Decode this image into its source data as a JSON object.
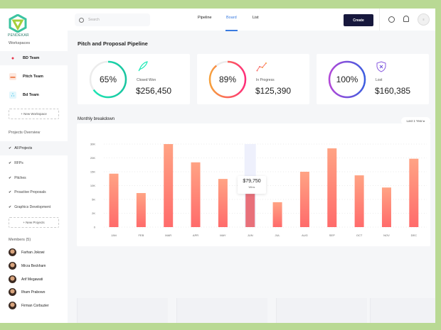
{
  "brand": {
    "logo_text": "PENDEKAR"
  },
  "sidebar": {
    "workspaces_label": "Workspaces",
    "workspaces": [
      {
        "label": "BD Team",
        "color": "#e8334a"
      },
      {
        "label": "Pitch Team",
        "color": "#f08a5d"
      },
      {
        "label": "Bd Team",
        "color": "#3ac0e8"
      }
    ],
    "new_workspace": "+ New Workspace",
    "projects_label": "Projects Overview",
    "projects": [
      {
        "label": "All Projects"
      },
      {
        "label": "RFPs"
      },
      {
        "label": "Pitches"
      },
      {
        "label": "Proactive Proposals"
      },
      {
        "label": "Graphics Development"
      }
    ],
    "new_project": "+ New Projects",
    "members_label": "Members (5)",
    "members": [
      {
        "name": "Farhan Jokowi"
      },
      {
        "name": "Mirza Beckham"
      },
      {
        "name": "Arif Megawati"
      },
      {
        "name": "Ilham Prabowo"
      },
      {
        "name": "Firman Corbuzier"
      }
    ]
  },
  "header": {
    "search_placeholder": "Search",
    "tabs": [
      {
        "label": "Pipeline"
      },
      {
        "label": "Board",
        "active": true
      },
      {
        "label": "List"
      }
    ],
    "create_label": "Create",
    "icons": [
      "gear-icon",
      "bell-icon",
      "avatar"
    ]
  },
  "main": {
    "title": "Pitch and Proposal Pipeline",
    "cards": [
      {
        "percent": "65%",
        "progress": 0.65,
        "caption": "Closed Won",
        "amount": "$256,450",
        "icon": "rocket-icon",
        "colors": [
          "#1de9b6",
          "#19c5a0"
        ]
      },
      {
        "percent": "89%",
        "progress": 0.89,
        "caption": "In Progress",
        "amount": "$125,390",
        "icon": "trend-line-icon",
        "colors": [
          "#f7a13b",
          "#ff2d7a"
        ]
      },
      {
        "percent": "100%",
        "progress": 1.0,
        "caption": "Lost",
        "amount": "$160,385",
        "icon": "shield-x-icon",
        "colors": [
          "#b247d8",
          "#3c5ee0"
        ]
      }
    ],
    "breakdown_title": "Monthly breakdown",
    "range_label": "Last 1 Year"
  },
  "chart_data": {
    "type": "bar",
    "categories": [
      "JAN",
      "FEB",
      "MAR",
      "APR",
      "MAY",
      "JUN",
      "JUL",
      "AUG",
      "SEP",
      "OCT",
      "NOV",
      "DEC"
    ],
    "values": [
      14300,
      7300,
      30000,
      18400,
      12400,
      7000,
      4400,
      15000,
      26900,
      13700,
      9300,
      19700
    ],
    "y_ticks": [
      "0",
      "2K",
      "5K",
      "10K",
      "15K",
      "20K",
      "30K"
    ],
    "y_tick_values": [
      0,
      2000,
      5000,
      10000,
      15000,
      20000,
      30000
    ],
    "ylim": [
      0,
      30000
    ],
    "grid": true,
    "highlight_index": 5,
    "tooltip": {
      "value": "$79,750",
      "label": "Wins"
    },
    "bar_colors": [
      "#ffa384",
      "#ff6b6b"
    ],
    "highlight_color": "#e8707a"
  }
}
